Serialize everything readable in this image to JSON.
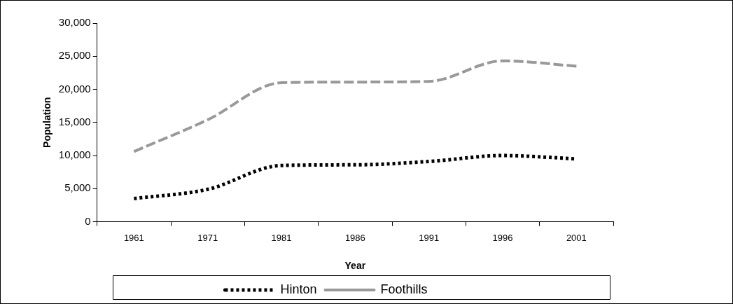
{
  "chart_data": {
    "type": "line",
    "xlabel": "Year",
    "ylabel": "Population",
    "categories": [
      "1961",
      "1971",
      "1981",
      "1986",
      "1991",
      "1996",
      "2001"
    ],
    "series": [
      {
        "name": "Hinton",
        "color": "#000000",
        "line_style": "dotted",
        "values": [
          3500,
          4900,
          8500,
          8600,
          9100,
          10000,
          9500
        ]
      },
      {
        "name": "Foothills",
        "color": "#999999",
        "line_style": "dashed",
        "values": [
          10600,
          15400,
          21000,
          21100,
          21200,
          24300,
          23500
        ]
      }
    ],
    "ylim": [
      0,
      30000
    ],
    "yticks": [
      {
        "value": 0,
        "label": "0"
      },
      {
        "value": 5000,
        "label": "5,000"
      },
      {
        "value": 10000,
        "label": "10,000"
      },
      {
        "value": 15000,
        "label": "15,000"
      },
      {
        "value": 20000,
        "label": "20,000"
      },
      {
        "value": 25000,
        "label": "25,000"
      },
      {
        "value": 30000,
        "label": "30,000"
      }
    ],
    "grid": false,
    "legend": "bottom",
    "marker": "none"
  }
}
